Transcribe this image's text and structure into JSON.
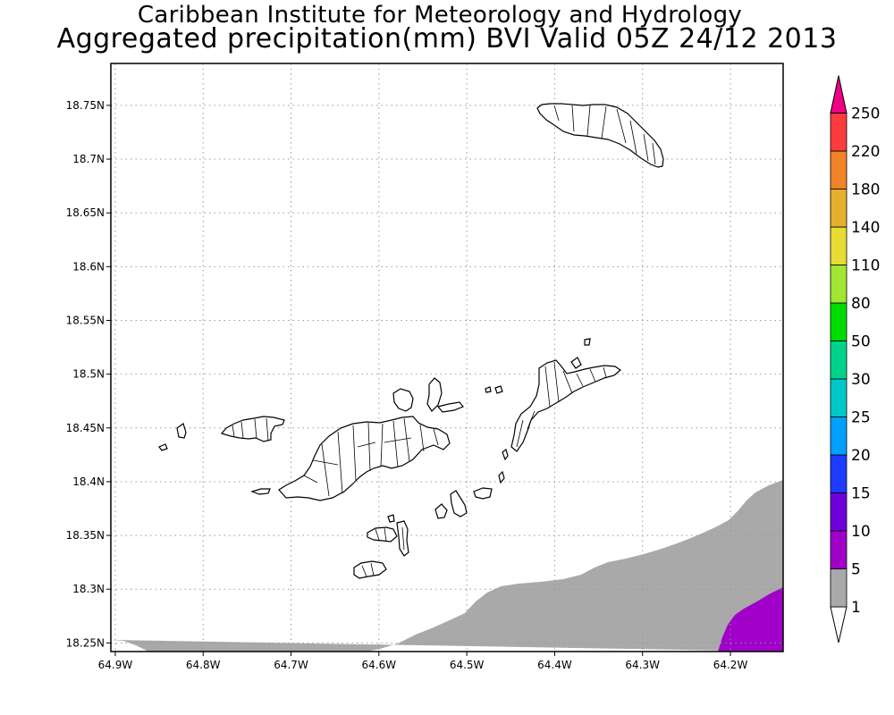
{
  "header": {
    "title_line1": "Caribbean Institute for Meteorology and Hydrology",
    "title_line2": "Aggregated precipitation(mm) BVI Valid 05Z 24/12 2013"
  },
  "map": {
    "lon_range": [
      -64.905,
      -64.14
    ],
    "lat_range": [
      18.242,
      18.789
    ],
    "lat_ticks": [
      {
        "value": 18.75,
        "label": "18.75N"
      },
      {
        "value": 18.7,
        "label": "18.7N"
      },
      {
        "value": 18.65,
        "label": "18.65N"
      },
      {
        "value": 18.6,
        "label": "18.6N"
      },
      {
        "value": 18.55,
        "label": "18.55N"
      },
      {
        "value": 18.5,
        "label": "18.5N"
      },
      {
        "value": 18.45,
        "label": "18.45N"
      },
      {
        "value": 18.4,
        "label": "18.4N"
      },
      {
        "value": 18.35,
        "label": "18.35N"
      },
      {
        "value": 18.3,
        "label": "18.3N"
      },
      {
        "value": 18.25,
        "label": "18.25N"
      }
    ],
    "lon_ticks": [
      {
        "value": -64.9,
        "label": "64.9W"
      },
      {
        "value": -64.8,
        "label": "64.8W"
      },
      {
        "value": -64.7,
        "label": "64.7W"
      },
      {
        "value": -64.6,
        "label": "64.6W"
      },
      {
        "value": -64.5,
        "label": "64.5W"
      },
      {
        "value": -64.4,
        "label": "64.4W"
      },
      {
        "value": -64.3,
        "label": "64.3W"
      },
      {
        "value": -64.2,
        "label": "64.2W"
      }
    ],
    "grid": "dotted"
  },
  "colorbar": {
    "levels": [
      {
        "label": "1",
        "color": "#ffffff"
      },
      {
        "label": "5",
        "color": "#a9a9a9"
      },
      {
        "label": "10",
        "color": "#a000c8"
      },
      {
        "label": "15",
        "color": "#6e00dc"
      },
      {
        "label": "20",
        "color": "#1e3cff"
      },
      {
        "label": "25",
        "color": "#00a0ff"
      },
      {
        "label": "30",
        "color": "#00c8c8"
      },
      {
        "label": "50",
        "color": "#00d28c"
      },
      {
        "label": "80",
        "color": "#00dc00"
      },
      {
        "label": "110",
        "color": "#a0e632"
      },
      {
        "label": "140",
        "color": "#e6dc32"
      },
      {
        "label": "180",
        "color": "#e6af2d"
      },
      {
        "label": "220",
        "color": "#f08228"
      },
      {
        "label": "250",
        "color": "#fa3c3c"
      }
    ],
    "top_color": "#f00082"
  },
  "field": {
    "gray_label": "1-5 mm",
    "gray_color": "#a9a9a9",
    "purple_color": "#a000c8"
  }
}
